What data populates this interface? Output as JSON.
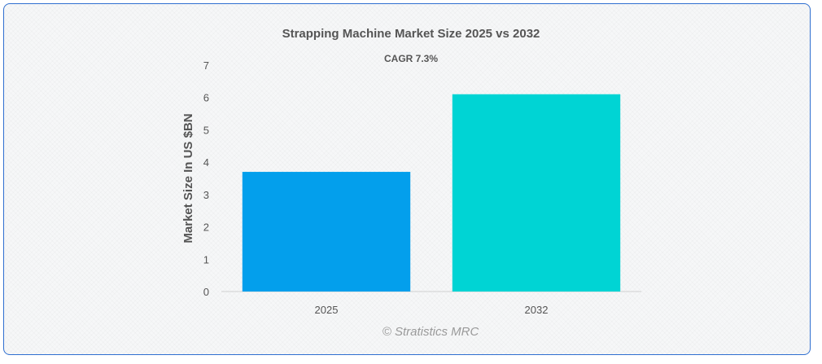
{
  "chart_data": {
    "type": "bar",
    "title": "Strapping Machine Market Size 2025 vs 2032",
    "subtitle": "CAGR 7.3%",
    "categories": [
      "2025",
      "2032"
    ],
    "values": [
      3.7,
      6.1
    ],
    "colors": [
      "#039fec",
      "#00d4d4"
    ],
    "xlabel": "",
    "ylabel": "Market Size In US $BN",
    "ylim": [
      0,
      7
    ],
    "yticks": [
      "0",
      "1",
      "2",
      "3",
      "4",
      "5",
      "6",
      "7"
    ],
    "grid": false
  },
  "watermark": "© Stratistics MRC"
}
